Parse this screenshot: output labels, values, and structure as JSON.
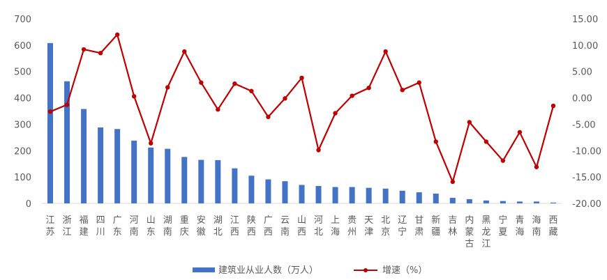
{
  "chart_data": {
    "type": "bar+line",
    "categories": [
      "江苏",
      "浙江",
      "福建",
      "四川",
      "广东",
      "河南",
      "山东",
      "湖南",
      "重庆",
      "安徽",
      "湖北",
      "江西",
      "陕西",
      "广西",
      "云南",
      "山西",
      "河北",
      "上海",
      "贵州",
      "天津",
      "北京",
      "辽宁",
      "甘肃",
      "新疆",
      "吉林",
      "内蒙古",
      "黑龙江",
      "宁夏",
      "青海",
      "海南",
      "西藏"
    ],
    "series": [
      {
        "name": "建筑业从业人数（万人）",
        "type": "bar",
        "axis": "left",
        "color": "#4472C4",
        "values": [
          608,
          463,
          358,
          288,
          282,
          238,
          212,
          207,
          176,
          165,
          164,
          133,
          105,
          91,
          84,
          70,
          66,
          62,
          62,
          59,
          56,
          48,
          42,
          37,
          21,
          16,
          11,
          9,
          7,
          7,
          3
        ]
      },
      {
        "name": "增速（%）",
        "type": "line",
        "axis": "right",
        "color": "#C00000",
        "values": [
          -2.6,
          -1.3,
          9.2,
          8.5,
          12.0,
          0.3,
          -8.6,
          2.0,
          8.8,
          2.9,
          -2.2,
          2.7,
          1.3,
          -3.6,
          -0.1,
          3.8,
          -9.9,
          -2.9,
          0.4,
          1.9,
          8.8,
          1.5,
          2.9,
          -8.3,
          -15.9,
          -4.6,
          -8.3,
          -11.9,
          -6.5,
          -13.1,
          -1.5
        ]
      }
    ],
    "y_left": {
      "min": 0,
      "max": 700,
      "ticks": [
        "0",
        "100",
        "200",
        "300",
        "400",
        "500",
        "600",
        "700"
      ]
    },
    "y_right": {
      "min": -20,
      "max": 15,
      "ticks": [
        "-20.00",
        "-15.00",
        "-10.00",
        "-5.00",
        "0.00",
        "5.00",
        "10.00",
        "15.00"
      ]
    },
    "grid": false,
    "legend_position": "bottom"
  }
}
